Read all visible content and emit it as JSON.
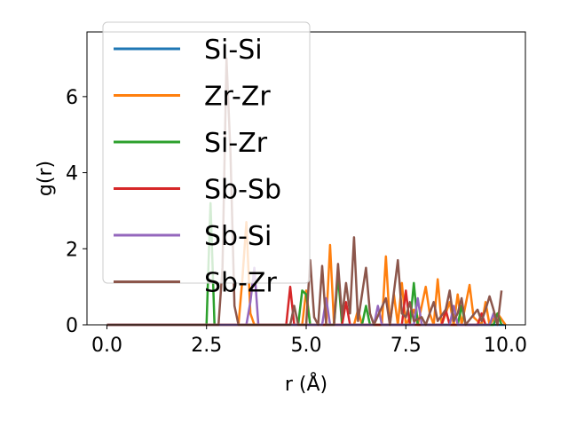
{
  "chart_data": {
    "type": "line",
    "title": "",
    "xlabel": "r (Å)",
    "ylabel": "g(r)",
    "xlim": [
      -0.5,
      10.5
    ],
    "ylim": [
      0,
      7.7
    ],
    "xticks": [
      "0.0",
      "2.5",
      "5.0",
      "7.5",
      "10.0"
    ],
    "xtick_values": [
      0,
      2.5,
      5,
      7.5,
      10
    ],
    "yticks": [
      "0",
      "2",
      "4",
      "6"
    ],
    "ytick_values": [
      0,
      2,
      4,
      6
    ],
    "legend_position": "top-left",
    "grid": false,
    "series": [
      {
        "name": "Si-Si",
        "color": "#1f77b4",
        "points": [
          [
            0,
            0
          ],
          [
            10,
            0
          ]
        ]
      },
      {
        "name": "Zr-Zr",
        "color": "#ff7f0e",
        "points": [
          [
            0,
            0
          ],
          [
            3.3,
            0
          ],
          [
            3.4,
            1.2
          ],
          [
            3.5,
            2.7
          ],
          [
            3.6,
            0.3
          ],
          [
            3.7,
            0
          ],
          [
            4.9,
            0
          ],
          [
            5.0,
            0.9
          ],
          [
            5.1,
            0
          ],
          [
            5.5,
            0
          ],
          [
            5.6,
            2.1
          ],
          [
            5.7,
            0
          ],
          [
            6.2,
            0
          ],
          [
            6.3,
            0.4
          ],
          [
            6.4,
            0
          ],
          [
            6.9,
            0
          ],
          [
            7.0,
            1.8
          ],
          [
            7.1,
            0
          ],
          [
            7.2,
            0.8
          ],
          [
            7.3,
            0
          ],
          [
            7.4,
            1.1
          ],
          [
            7.5,
            0
          ],
          [
            7.7,
            0.4
          ],
          [
            7.8,
            0
          ],
          [
            8.0,
            1.0
          ],
          [
            8.1,
            0.3
          ],
          [
            8.2,
            0
          ],
          [
            8.3,
            1.2
          ],
          [
            8.4,
            0
          ],
          [
            8.6,
            0.6
          ],
          [
            8.7,
            0
          ],
          [
            8.8,
            0.8
          ],
          [
            8.9,
            0
          ],
          [
            9.1,
            1.05
          ],
          [
            9.2,
            0.2
          ],
          [
            9.4,
            0
          ],
          [
            9.5,
            0.6
          ],
          [
            9.6,
            0
          ],
          [
            9.8,
            0.3
          ],
          [
            10,
            0
          ]
        ]
      },
      {
        "name": "Si-Zr",
        "color": "#2ca02c",
        "points": [
          [
            0,
            0
          ],
          [
            2.5,
            0
          ],
          [
            2.6,
            3.2
          ],
          [
            2.7,
            0
          ],
          [
            4.8,
            0
          ],
          [
            4.9,
            0.9
          ],
          [
            5.0,
            0.8
          ],
          [
            5.1,
            0
          ],
          [
            5.7,
            0
          ],
          [
            5.8,
            1.3
          ],
          [
            5.9,
            0
          ],
          [
            6.4,
            0
          ],
          [
            6.5,
            0.5
          ],
          [
            6.6,
            0
          ],
          [
            7.6,
            0
          ],
          [
            7.7,
            1.1
          ],
          [
            7.8,
            0
          ],
          [
            8.8,
            0
          ],
          [
            8.9,
            0.5
          ],
          [
            9.0,
            0
          ],
          [
            9.7,
            0
          ],
          [
            9.8,
            0.3
          ],
          [
            9.9,
            0
          ]
        ]
      },
      {
        "name": "Sb-Sb",
        "color": "#d62728",
        "points": [
          [
            0,
            0
          ],
          [
            4.5,
            0
          ],
          [
            4.6,
            1.0
          ],
          [
            4.7,
            0
          ],
          [
            5.9,
            0
          ],
          [
            6.0,
            0.6
          ],
          [
            6.1,
            0
          ],
          [
            7.4,
            0
          ],
          [
            7.5,
            0.9
          ],
          [
            7.6,
            0
          ],
          [
            8.4,
            0
          ],
          [
            8.5,
            0.4
          ],
          [
            8.6,
            0
          ],
          [
            9.3,
            0
          ],
          [
            9.4,
            0.3
          ],
          [
            9.5,
            0
          ]
        ]
      },
      {
        "name": "Sb-Si",
        "color": "#9467bd",
        "points": [
          [
            0,
            0
          ],
          [
            3.5,
            0
          ],
          [
            3.6,
            0.6
          ],
          [
            3.7,
            1.5
          ],
          [
            3.8,
            0
          ],
          [
            5.4,
            0
          ],
          [
            5.5,
            0.7
          ],
          [
            5.6,
            0
          ],
          [
            6.7,
            0
          ],
          [
            6.8,
            0.5
          ],
          [
            6.9,
            0
          ],
          [
            7.7,
            0
          ],
          [
            7.8,
            0.7
          ],
          [
            7.9,
            0
          ],
          [
            8.6,
            0
          ],
          [
            8.7,
            0.5
          ],
          [
            8.8,
            0
          ],
          [
            9.6,
            0
          ],
          [
            9.7,
            0.3
          ],
          [
            9.8,
            0
          ]
        ]
      },
      {
        "name": "Sb-Zr",
        "color": "#8c564b",
        "points": [
          [
            0,
            0
          ],
          [
            2.8,
            0
          ],
          [
            2.9,
            1.5
          ],
          [
            3.0,
            7.0
          ],
          [
            3.1,
            4.5
          ],
          [
            3.2,
            0.5
          ],
          [
            3.3,
            0
          ],
          [
            4.6,
            0
          ],
          [
            4.7,
            0.5
          ],
          [
            4.8,
            0
          ],
          [
            5.0,
            0
          ],
          [
            5.1,
            1.7
          ],
          [
            5.2,
            0.2
          ],
          [
            5.3,
            0
          ],
          [
            5.4,
            1.55
          ],
          [
            5.5,
            0
          ],
          [
            5.7,
            0
          ],
          [
            5.8,
            1.6
          ],
          [
            5.9,
            0.2
          ],
          [
            6.0,
            1.1
          ],
          [
            6.1,
            0.3
          ],
          [
            6.2,
            2.3
          ],
          [
            6.3,
            0.1
          ],
          [
            6.5,
            1.5
          ],
          [
            6.6,
            0.3
          ],
          [
            6.7,
            0
          ],
          [
            7.0,
            0.7
          ],
          [
            7.1,
            0
          ],
          [
            7.3,
            1.7
          ],
          [
            7.4,
            0.3
          ],
          [
            7.5,
            0.2
          ],
          [
            7.6,
            0.6
          ],
          [
            7.7,
            0.1
          ],
          [
            7.9,
            0.2
          ],
          [
            8.0,
            0
          ],
          [
            8.2,
            0.6
          ],
          [
            8.3,
            0.1
          ],
          [
            8.5,
            0.4
          ],
          [
            8.6,
            0.9
          ],
          [
            8.7,
            0.1
          ],
          [
            8.8,
            0.3
          ],
          [
            8.9,
            0.7
          ],
          [
            9.0,
            0
          ],
          [
            9.3,
            0.4
          ],
          [
            9.4,
            0.1
          ],
          [
            9.5,
            0.4
          ],
          [
            9.6,
            0.75
          ],
          [
            9.7,
            0.4
          ],
          [
            9.8,
            0
          ],
          [
            9.9,
            0.9
          ]
        ]
      }
    ]
  }
}
